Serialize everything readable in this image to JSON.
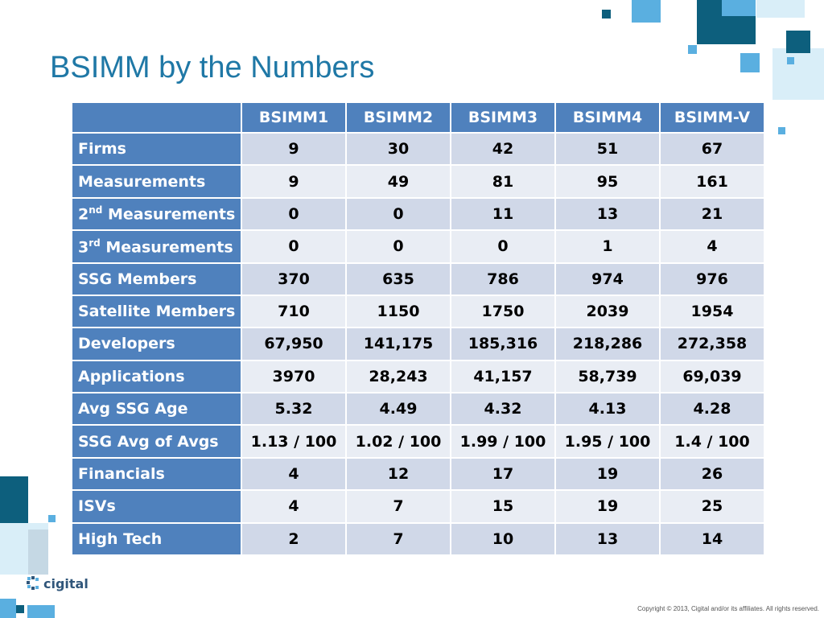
{
  "slide": {
    "title": "BSIMM by the Numbers",
    "copyright": "Copyright © 2013, Cigital and/or its affiliates. All rights reserved.",
    "logo_text": "cigital"
  },
  "colors": {
    "title": "#1f78a6",
    "header": "#4f81bd",
    "row_odd": "#d0d8e8",
    "row_even": "#e9edf4",
    "deco_dark": "#0d5f7d",
    "deco_light": "#5aafe0",
    "deco_pale": "#d9eef8"
  },
  "table": {
    "columns": [
      "BSIMM1",
      "BSIMM2",
      "BSIMM3",
      "BSIMM4",
      "BSIMM-V"
    ],
    "rows": [
      {
        "label": "Firms",
        "values": [
          "9",
          "30",
          "42",
          "51",
          "67"
        ]
      },
      {
        "label": "Measurements",
        "values": [
          "9",
          "49",
          "81",
          "95",
          "161"
        ]
      },
      {
        "label_prefix": "2",
        "label_sup": "nd",
        "label_suffix": " Measurements",
        "values": [
          "0",
          "0",
          "11",
          "13",
          "21"
        ]
      },
      {
        "label_prefix": "3",
        "label_sup": "rd",
        "label_suffix": " Measurements",
        "values": [
          "0",
          "0",
          "0",
          "1",
          "4"
        ]
      },
      {
        "label": "SSG Members",
        "values": [
          "370",
          "635",
          "786",
          "974",
          "976"
        ]
      },
      {
        "label": "Satellite Members",
        "values": [
          "710",
          "1150",
          "1750",
          "2039",
          "1954"
        ]
      },
      {
        "label": "Developers",
        "values": [
          "67,950",
          "141,175",
          "185,316",
          "218,286",
          "272,358"
        ]
      },
      {
        "label": "Applications",
        "values": [
          "3970",
          "28,243",
          "41,157",
          "58,739",
          "69,039"
        ]
      },
      {
        "label": "Avg SSG Age",
        "values": [
          "5.32",
          "4.49",
          "4.32",
          "4.13",
          "4.28"
        ]
      },
      {
        "label": "SSG Avg of Avgs",
        "values": [
          "1.13 / 100",
          "1.02 / 100",
          "1.99 / 100",
          "1.95 / 100",
          "1.4 / 100"
        ]
      },
      {
        "label": "Financials",
        "values": [
          "4",
          "12",
          "17",
          "19",
          "26"
        ]
      },
      {
        "label": "ISVs",
        "values": [
          "4",
          "7",
          "15",
          "19",
          "25"
        ]
      },
      {
        "label": "High Tech",
        "values": [
          "2",
          "7",
          "10",
          "13",
          "14"
        ]
      }
    ]
  }
}
